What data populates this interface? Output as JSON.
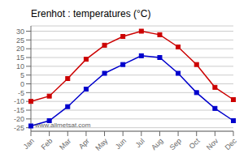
{
  "chart_data": {
    "type": "line",
    "title": "Erenhot : temperatures (°C)",
    "categories": [
      "Jan",
      "Feb",
      "Mar",
      "Apr",
      "May",
      "Jun",
      "Jul",
      "Aug",
      "Sep",
      "Oct",
      "Nov",
      "Dec"
    ],
    "series": [
      {
        "color": "#cc0000",
        "marker": "square",
        "values": [
          -10,
          -7,
          3,
          14,
          22,
          27,
          30,
          28,
          21,
          11,
          -2,
          -9
        ]
      },
      {
        "color": "#0000cc",
        "marker": "square",
        "values": [
          -24,
          -21,
          -13,
          -3,
          6,
          11,
          16,
          15,
          6,
          -5,
          -14,
          -21
        ]
      }
    ],
    "ylim": [
      -27,
      33
    ],
    "yticks": [
      -25,
      -20,
      -15,
      -10,
      -5,
      0,
      5,
      10,
      15,
      20,
      25,
      30
    ],
    "grid": "y",
    "annotations": [
      "www.allmetsat.com"
    ]
  }
}
